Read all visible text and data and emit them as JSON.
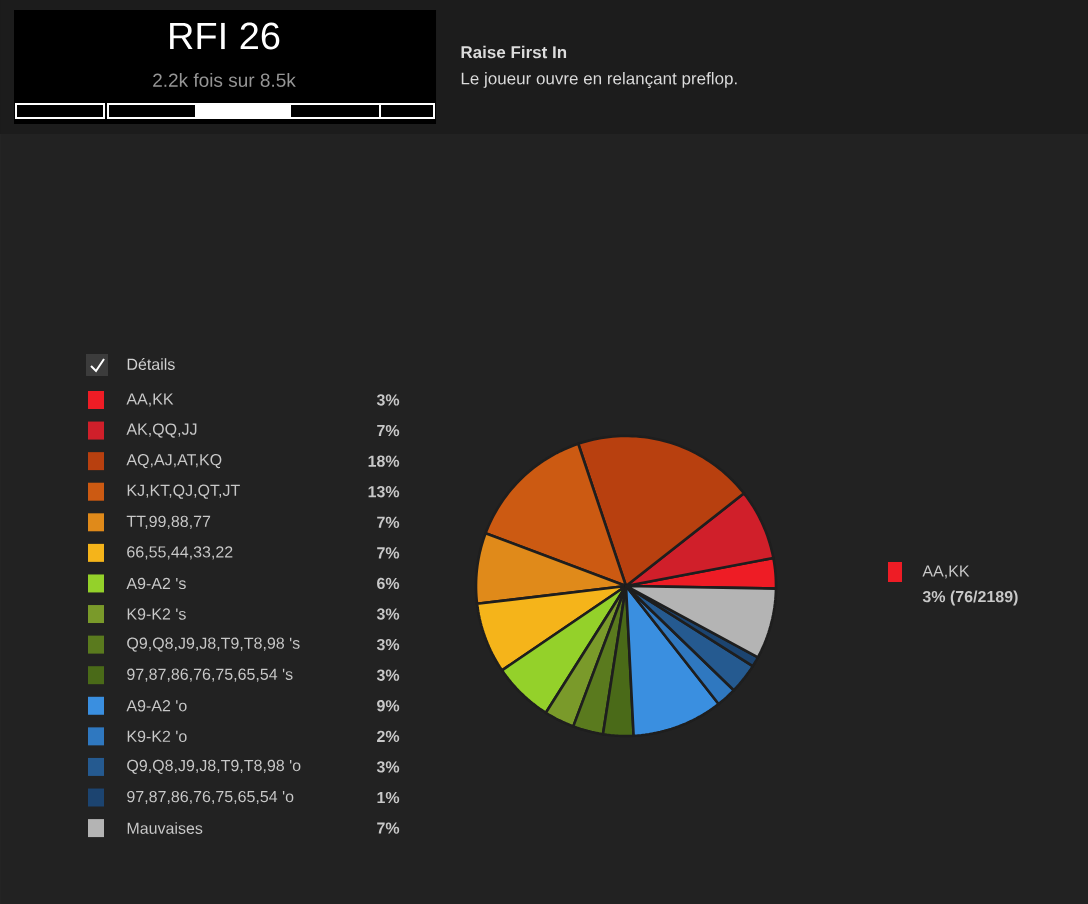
{
  "chart_data": {
    "type": "pie",
    "title": "RFI 26",
    "subtitle": "2.2k fois sur 8.5k",
    "annotations": [
      "Raise First In",
      "Le joueur ouvre en relançant preflop.",
      "Détails",
      "AA,KK",
      "3% (76/2189)"
    ],
    "categories": [
      "AA,KK",
      "AK,QQ,JJ",
      "AQ,AJ,AT,KQ",
      "KJ,KT,QJ,QT,JT",
      "TT,99,88,77",
      "66,55,44,33,22",
      "A9-A2 's",
      "K9-K2 's",
      "Q9,Q8,J9,J8,T9,T8,98 's",
      "97,87,86,76,75,65,54 's",
      "A9-A2 'o",
      "K9-K2 'o",
      "Q9,Q8,J9,J8,T9,T8,98 'o",
      "97,87,86,76,75,65,54 'o",
      "Mauvaises"
    ],
    "values": [
      3,
      7,
      18,
      13,
      7,
      7,
      6,
      3,
      3,
      3,
      9,
      2,
      3,
      1,
      7
    ],
    "value_labels": [
      "3%",
      "7%",
      "18%",
      "13%",
      "7%",
      "7%",
      "6%",
      "3%",
      "3%",
      "3%",
      "9%",
      "2%",
      "3%",
      "1%",
      "7%"
    ],
    "colors": [
      "#ee1c25",
      "#d01f2a",
      "#b8400f",
      "#cc5a12",
      "#e08a1a",
      "#f5b41a",
      "#94d12a",
      "#7a9a2a",
      "#5a7a1e",
      "#4a6a18",
      "#3a8fe0",
      "#2f78c0",
      "#255a90",
      "#1c4470",
      "#b4b4b4"
    ],
    "legend": "left"
  }
}
